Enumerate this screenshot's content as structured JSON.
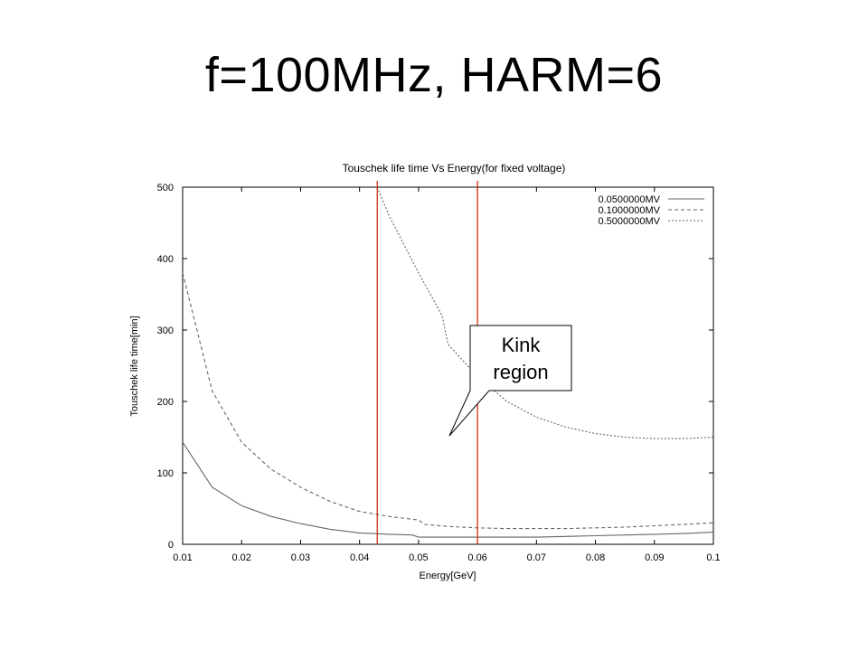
{
  "slide": {
    "title": "f=100MHz, HARM=6"
  },
  "chart_data": {
    "type": "line",
    "title": "Touschek life time Vs Energy(for fixed voltage)",
    "xlabel": "Energy[GeV]",
    "ylabel": "Touschek life time[min]",
    "xlim": [
      0.01,
      0.1
    ],
    "ylim": [
      0,
      500
    ],
    "xticks": [
      0.01,
      0.02,
      0.03,
      0.04,
      0.05,
      0.06,
      0.07,
      0.08,
      0.09,
      0.1
    ],
    "xtick_labels": [
      "0.01",
      "0.02",
      "0.03",
      "0.04",
      "0.05",
      "0.06",
      "0.07",
      "0.08",
      "0.09",
      "0.1"
    ],
    "yticks": [
      0,
      100,
      200,
      300,
      400,
      500
    ],
    "ytick_labels": [
      "0",
      "100",
      "200",
      "300",
      "400",
      "500"
    ],
    "grid": false,
    "legend_position": "top-right",
    "series": [
      {
        "name": "0.0500000MV",
        "line_style": "solid",
        "color": "#666666",
        "x": [
          0.01,
          0.015,
          0.02,
          0.025,
          0.03,
          0.035,
          0.04,
          0.045,
          0.049,
          0.05,
          0.055,
          0.06,
          0.065,
          0.07,
          0.075,
          0.08,
          0.085,
          0.09,
          0.095,
          0.1
        ],
        "y": [
          143,
          80,
          54,
          39,
          29,
          21,
          16,
          14,
          13,
          10,
          10,
          10,
          10,
          10,
          11,
          12,
          13,
          14,
          15,
          17
        ]
      },
      {
        "name": "0.1000000MV",
        "line_style": "dashed",
        "color": "#666666",
        "x": [
          0.01,
          0.015,
          0.02,
          0.025,
          0.03,
          0.035,
          0.04,
          0.045,
          0.049,
          0.05,
          0.051,
          0.055,
          0.06,
          0.065,
          0.07,
          0.075,
          0.08,
          0.085,
          0.09,
          0.095,
          0.1
        ],
        "y": [
          380,
          215,
          143,
          105,
          80,
          60,
          46,
          39,
          35,
          34,
          28,
          25,
          23,
          22,
          22,
          22,
          23,
          24,
          26,
          28,
          30
        ]
      },
      {
        "name": "0.5000000MV",
        "line_style": "dotted",
        "color": "#666666",
        "x": [
          0.043,
          0.045,
          0.05,
          0.054,
          0.055,
          0.06,
          0.065,
          0.07,
          0.075,
          0.08,
          0.085,
          0.09,
          0.095,
          0.1
        ],
        "y": [
          500,
          460,
          380,
          320,
          280,
          235,
          200,
          178,
          164,
          155,
          150,
          148,
          148,
          150
        ]
      }
    ],
    "markers": [
      {
        "type": "vertical-line",
        "x": 0.043,
        "color": "#cc2200"
      },
      {
        "type": "vertical-line",
        "x": 0.06,
        "color": "#cc2200"
      }
    ],
    "annotation": {
      "text_lines": [
        "Kink",
        "region"
      ]
    }
  }
}
